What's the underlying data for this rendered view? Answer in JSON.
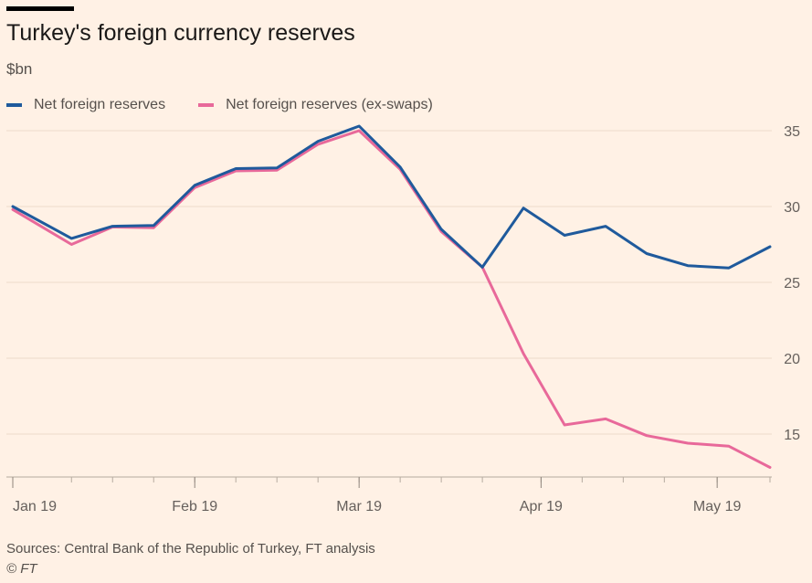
{
  "title": "Turkey's foreign currency reserves",
  "unit": "$bn",
  "legend": [
    {
      "label": "Net foreign reserves",
      "color": "#1f5a9c"
    },
    {
      "label": "Net foreign reserves (ex-swaps)",
      "color": "#e8699a"
    }
  ],
  "source": "Sources: Central Bank of the Republic of Turkey, FT analysis",
  "copyright": "© FT",
  "chart_data": {
    "type": "line",
    "x": [
      "2019-01-01",
      "2019-01-11",
      "2019-01-18",
      "2019-01-25",
      "2019-02-01",
      "2019-02-08",
      "2019-02-15",
      "2019-02-22",
      "2019-03-01",
      "2019-03-08",
      "2019-03-15",
      "2019-03-22",
      "2019-03-29",
      "2019-04-05",
      "2019-04-12",
      "2019-04-19",
      "2019-04-26",
      "2019-05-03",
      "2019-05-10"
    ],
    "series": [
      {
        "name": "Net foreign reserves",
        "color": "#1f5a9c",
        "values": [
          30.0,
          27.9,
          28.7,
          28.75,
          31.4,
          32.5,
          32.55,
          34.3,
          35.3,
          32.6,
          28.5,
          26.0,
          29.9,
          28.1,
          28.7,
          26.9,
          26.1,
          25.95,
          27.35
        ]
      },
      {
        "name": "Net foreign reserves (ex-swaps)",
        "color": "#e8699a",
        "values": [
          29.8,
          27.5,
          28.65,
          null,
          null,
          null,
          null,
          34.1,
          35.0,
          null,
          null,
          26.0,
          20.3,
          15.6,
          16.0,
          14.9,
          14.4,
          14.2,
          12.8
        ]
      }
    ],
    "ylim": [
      12,
      35
    ],
    "yticks": [
      15,
      20,
      25,
      30,
      35
    ],
    "xticks": [
      {
        "date": "2019-01-01",
        "label": "Jan 19"
      },
      {
        "date": "2019-02-01",
        "label": "Feb 19"
      },
      {
        "date": "2019-03-01",
        "label": "Mar 19"
      },
      {
        "date": "2019-04-01",
        "label": "Apr 19"
      },
      {
        "date": "2019-05-01",
        "label": "May 19"
      }
    ],
    "minor_xticks": [
      "2019-01-01",
      "2019-01-11",
      "2019-01-18",
      "2019-01-25",
      "2019-02-01",
      "2019-02-08",
      "2019-02-15",
      "2019-02-22",
      "2019-03-01",
      "2019-03-08",
      "2019-03-15",
      "2019-03-22",
      "2019-04-01",
      "2019-04-08",
      "2019-04-15",
      "2019-04-22",
      "2019-05-01",
      "2019-05-10"
    ],
    "grid": true,
    "legend_position": "top-left"
  }
}
